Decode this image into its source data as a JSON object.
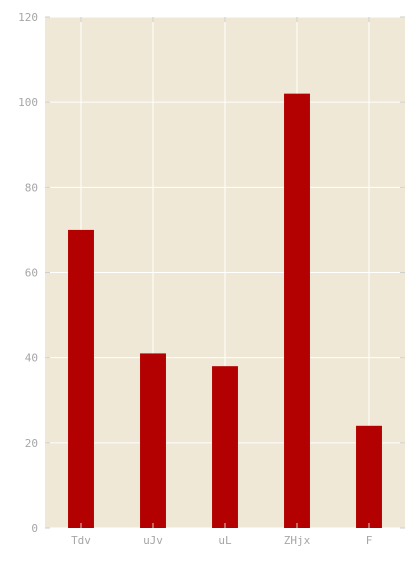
{
  "chart_data": {
    "type": "bar",
    "categories": [
      "Tdv",
      "uJv",
      "uL",
      "ZHjx",
      "F"
    ],
    "values": [
      70,
      41,
      38,
      102,
      24
    ],
    "title": "",
    "xlabel": "",
    "ylabel": "",
    "ylim": [
      0,
      120
    ],
    "yticks": [
      0,
      20,
      40,
      60,
      80,
      100,
      120
    ],
    "grid": true,
    "legend": "none"
  },
  "colors": {
    "plot_background": "#efe8d6",
    "bar": "#b30000",
    "grid": "#ffffff",
    "tick_label": "#a6a6a6",
    "tick_mark": "#cfcfcf"
  }
}
